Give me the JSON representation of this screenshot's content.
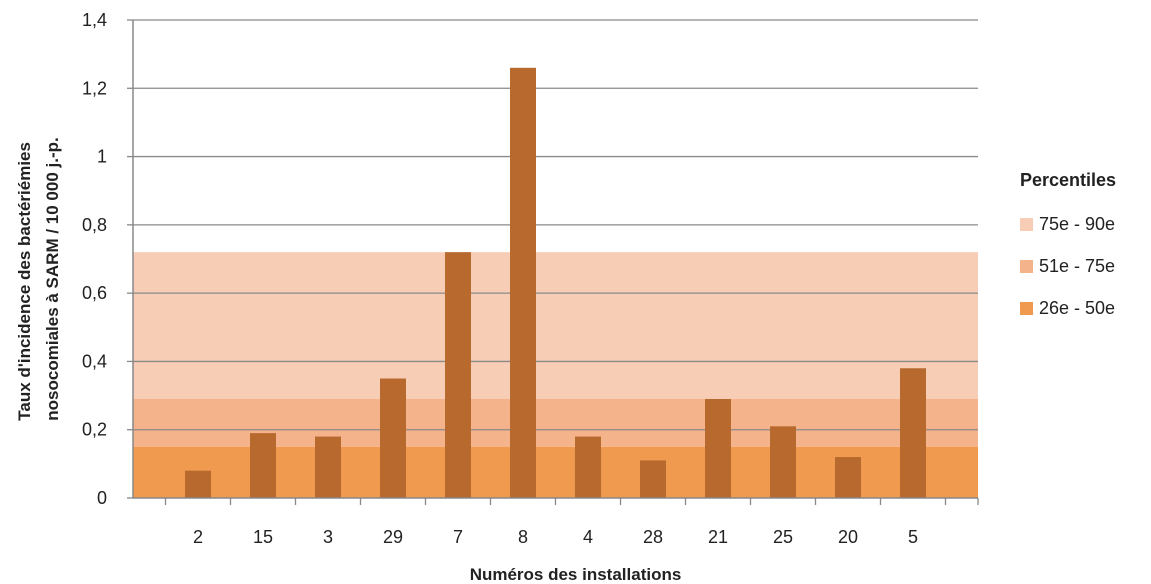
{
  "chart_data": {
    "type": "bar",
    "categories": [
      "2",
      "15",
      "3",
      "29",
      "7",
      "8",
      "4",
      "28",
      "21",
      "25",
      "20",
      "5"
    ],
    "values": [
      0.08,
      0.19,
      0.18,
      0.35,
      0.72,
      1.26,
      0.18,
      0.11,
      0.29,
      0.21,
      0.12,
      0.38
    ],
    "xlabel": "Numéros des installations",
    "ylabel_lines": [
      "Taux d'incidence des bactériémies",
      "nosocomiales à SARM / 10 000 j.-p."
    ],
    "ylim": [
      0,
      1.4
    ],
    "yticks": [
      {
        "value": 0,
        "label": "0"
      },
      {
        "value": 0.2,
        "label": "0,2"
      },
      {
        "value": 0.4,
        "label": "0,4"
      },
      {
        "value": 0.6,
        "label": "0,6"
      },
      {
        "value": 0.8,
        "label": "0,8"
      },
      {
        "value": 1,
        "label": "1"
      },
      {
        "value": 1.2,
        "label": "1,2"
      },
      {
        "value": 1.4,
        "label": "1,4"
      }
    ],
    "grid": true,
    "bar_color": "#b8692e",
    "percentile_bands": [
      {
        "label": "75e - 90e",
        "from": 0.29,
        "to": 0.72,
        "color": "#f8cdb6"
      },
      {
        "label": "51e - 75e",
        "from": 0.15,
        "to": 0.29,
        "color": "#f5b38c"
      },
      {
        "label": "26e - 50e",
        "from": 0,
        "to": 0.15,
        "color": "#f09a50"
      }
    ],
    "legend": {
      "title": "Percentiles",
      "position": "right"
    }
  }
}
